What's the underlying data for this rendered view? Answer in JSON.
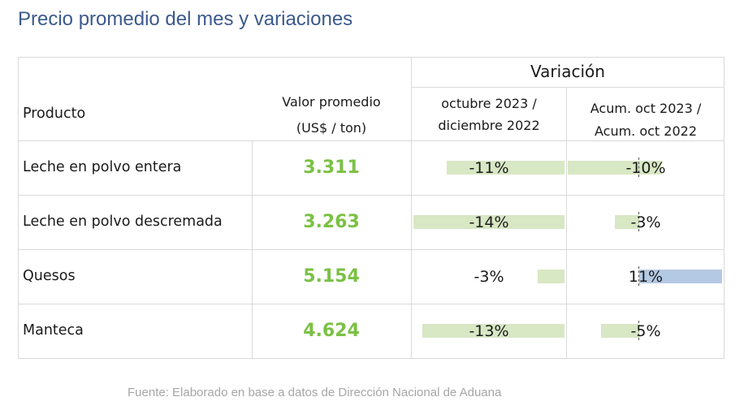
{
  "title": "Precio promedio del mes y variaciones",
  "header": {
    "variacion": "Variación",
    "producto": "Producto",
    "valor_line1": "Valor promedio",
    "valor_line2": "(US$ / ton)",
    "col1_line1": "octubre 2023 /",
    "col1_line2": "diciembre 2022",
    "col2_line1": "Acum. oct 2023 /",
    "col2_line2": "Acum. oct 2022"
  },
  "rows": [
    {
      "producto": "Leche en polvo entera",
      "valor": "3.311",
      "var_mes": "-11%",
      "var_acum": "-10%"
    },
    {
      "producto": "Leche en polvo descremada",
      "valor": "3.263",
      "var_mes": "-14%",
      "var_acum": "-3%"
    },
    {
      "producto": "Quesos",
      "valor": "5.154",
      "var_mes": "-3%",
      "var_acum": "11%"
    },
    {
      "producto": "Manteca",
      "valor": "4.624",
      "var_mes": "-13%",
      "var_acum": "-5%"
    }
  ],
  "colors": {
    "negative": "#d8e7c4",
    "positive": "#b4c9e3",
    "value": "#7bc144",
    "title": "#3b5a8c"
  },
  "source": "Fuente: Elaborado en base a datos de Dirección Nacional de Aduana"
}
